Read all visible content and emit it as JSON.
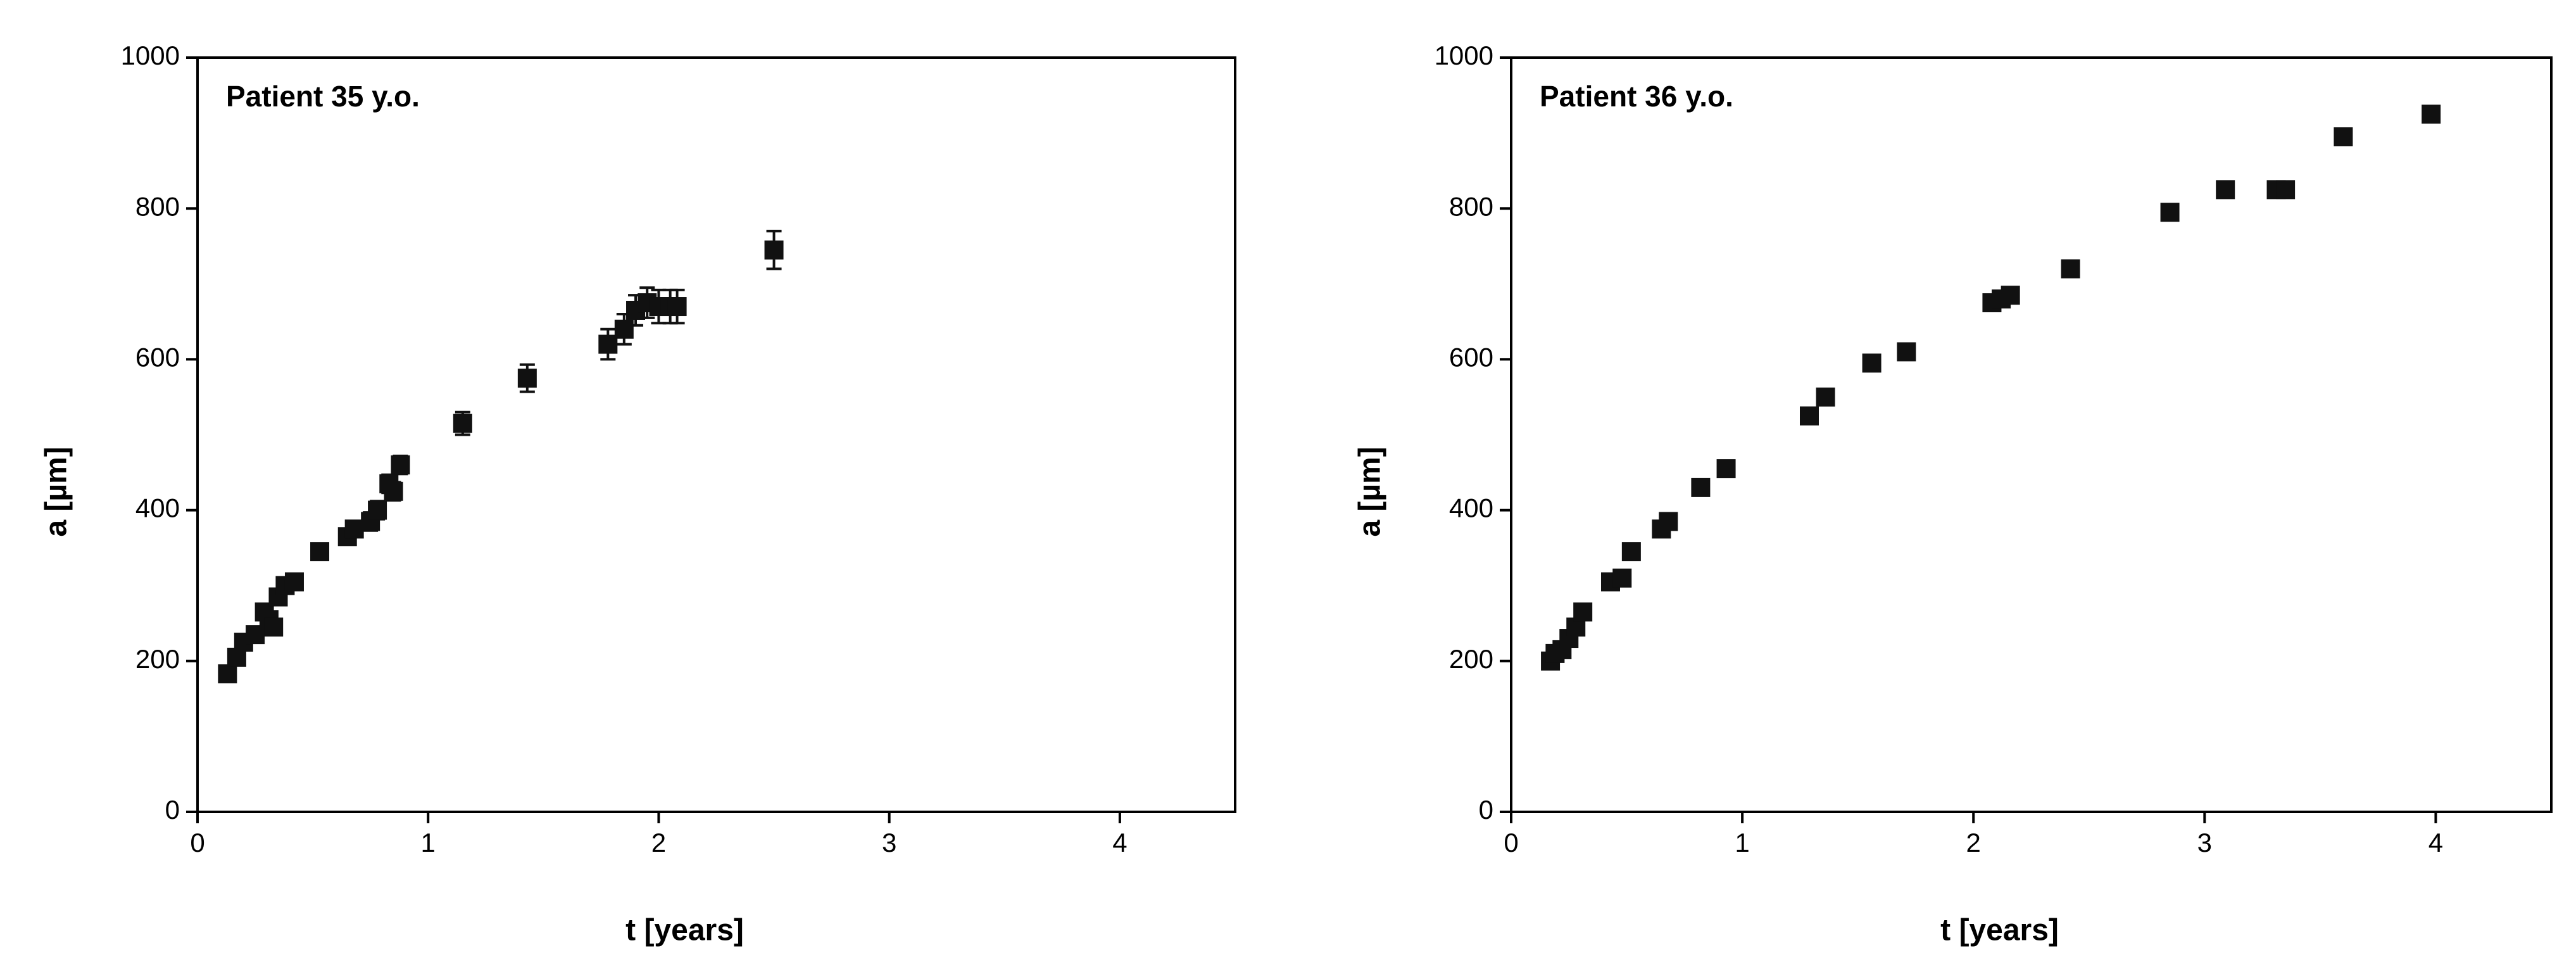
{
  "chart_data": [
    {
      "type": "scatter",
      "annotation": "Patient 35 y.o.",
      "x_label": "t [years]",
      "y_label": "a [µm]",
      "color": "#111111",
      "x": [
        0.13,
        0.17,
        0.2,
        0.25,
        0.29,
        0.31,
        0.33,
        0.35,
        0.38,
        0.42,
        0.53,
        0.65,
        0.68,
        0.75,
        0.78,
        0.83,
        0.85,
        0.88,
        1.15,
        1.43,
        1.78,
        1.85,
        1.9,
        1.95,
        2.0,
        2.05,
        2.08,
        2.5
      ],
      "values": [
        183,
        205,
        225,
        235,
        265,
        255,
        245,
        285,
        300,
        305,
        345,
        365,
        375,
        385,
        400,
        435,
        425,
        460,
        515,
        575,
        620,
        640,
        665,
        675,
        670,
        670,
        670,
        745
      ],
      "errors": [
        10,
        10,
        10,
        10,
        10,
        10,
        10,
        10,
        10,
        10,
        10,
        10,
        10,
        12,
        12,
        12,
        12,
        12,
        15,
        18,
        20,
        20,
        20,
        20,
        22,
        22,
        22,
        25
      ],
      "xlim": [
        0,
        4.5
      ],
      "ylim": [
        0,
        1000
      ],
      "xticks": [
        0,
        1,
        2,
        3,
        4
      ],
      "yticks": [
        0,
        200,
        400,
        600,
        800,
        1000
      ]
    },
    {
      "type": "scatter",
      "annotation": "Patient 36 y.o.",
      "x_label": "t [years]",
      "y_label": "a [µm]",
      "color": "#111111",
      "x": [
        0.17,
        0.19,
        0.22,
        0.25,
        0.28,
        0.31,
        0.43,
        0.48,
        0.52,
        0.65,
        0.68,
        0.82,
        0.93,
        1.29,
        1.36,
        1.56,
        1.71,
        2.08,
        2.12,
        2.16,
        2.42,
        2.85,
        3.09,
        3.31,
        3.35,
        3.6,
        3.98
      ],
      "values": [
        200,
        210,
        215,
        230,
        245,
        265,
        305,
        310,
        345,
        375,
        385,
        430,
        455,
        525,
        550,
        595,
        610,
        675,
        680,
        685,
        720,
        795,
        825,
        825,
        825,
        895,
        925
      ],
      "xlim": [
        0,
        4.5
      ],
      "ylim": [
        0,
        1000
      ],
      "xticks": [
        0,
        1,
        2,
        3,
        4
      ],
      "yticks": [
        0,
        200,
        400,
        600,
        800,
        1000
      ]
    }
  ]
}
